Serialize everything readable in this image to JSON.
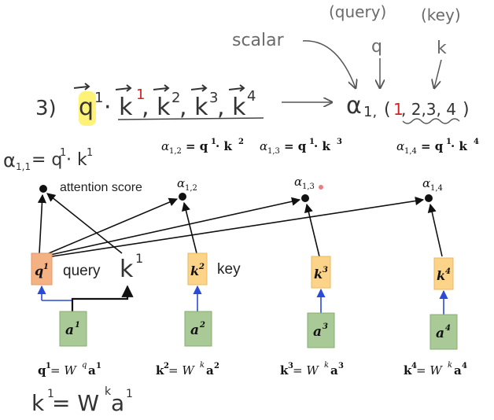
{
  "top": {
    "query_word": "(query)",
    "key_word": "(key)",
    "q_letter": "q",
    "k_letter": "k",
    "scalar_label": "scalar",
    "step_number": "3)",
    "dot_expr_q": "q",
    "dot_expr_q_sup": "1",
    "dot_expr_rest": "· k",
    "dot_expr_k1_sup": "1",
    "dot_expr_k2": ", k",
    "dot_expr_k2_sup": "2",
    "dot_expr_k3": ", k",
    "dot_expr_k3_sup": "3",
    "dot_expr_k4": ", k",
    "dot_expr_k4_sup": "4",
    "alpha_result": "α",
    "alpha_result_sub_1": "1,",
    "alpha_result_sub_2": "1",
    "alpha_result_sub_3": ", 2,3, 4",
    "alpha_result_close": ")",
    "alpha_result_open": "("
  },
  "formulas": {
    "a12": "α",
    "a12_sub": "1,2",
    "a12_eq": "= q",
    "a12_q_sup": "1",
    "a12_dot": " · k",
    "a12_k_sup": "2",
    "a13": "α",
    "a13_sub": "1,3",
    "a13_eq": "= q",
    "a13_q_sup": "1",
    "a13_dot": " · k",
    "a13_k_sup": "3",
    "a14": "α",
    "a14_sub": "1,4",
    "a14_eq": "= q",
    "a14_q_sup": "1",
    "a14_dot": " · k",
    "a14_k_sup": "4"
  },
  "left_note": {
    "alpha": "α",
    "sub": "1,1",
    "eq": " = q",
    "q_sup": "1",
    "dot": "· k",
    "k_sup": "1"
  },
  "scores": {
    "attention_score_label": "attention score",
    "s12": "α",
    "s12_sub": "1,2",
    "s13": "α",
    "s13_sub": "1,3",
    "s14": "α",
    "s14_sub": "1,4"
  },
  "boxes": {
    "q1": "q",
    "q1_sup": "1",
    "query_label": "query",
    "k1_hand": "k",
    "k1_hand_sup": "1",
    "k2": "k",
    "k2_sup": "2",
    "key_label": "key",
    "k3": "k",
    "k3_sup": "3",
    "k4": "k",
    "k4_sup": "4",
    "a1": "a",
    "a1_sup": "1",
    "a2": "a",
    "a2_sup": "2",
    "a3": "a",
    "a3_sup": "3",
    "a4": "a",
    "a4_sup": "4"
  },
  "bottom": {
    "q1_eq": "q",
    "q1_eq_sup": "1",
    "q1_eq_rhs": " = W",
    "q1_eq_w_sup": "q",
    "q1_eq_a": "a",
    "q1_eq_a_sup": "1",
    "k2_eq": "k",
    "k2_eq_sup": "2",
    "k2_eq_rhs": " = W",
    "k2_eq_w_sup": "k",
    "k2_eq_a": "a",
    "k2_eq_a_sup": "2",
    "k3_eq": "k",
    "k3_eq_sup": "3",
    "k3_eq_rhs": " = W",
    "k3_eq_w_sup": "k",
    "k3_eq_a": "a",
    "k3_eq_a_sup": "3",
    "k4_eq": "k",
    "k4_eq_sup": "4",
    "k4_eq_rhs": " = W",
    "k4_eq_w_sup": "k",
    "k4_eq_a": "a",
    "k4_eq_a_sup": "4",
    "k1_hand_eq": "k",
    "k1_hand_eq_sup": "1",
    "k1_hand_eq_rhs": " = W",
    "k1_hand_eq_w_sup": "k",
    "k1_hand_eq_a": "a",
    "k1_hand_eq_a_sup": "1"
  },
  "colors": {
    "q_box": "#f4b183",
    "k_box": "#fbd48a",
    "a_box": "#a9c996",
    "blue_arrow": "#2a4bd7",
    "highlight": "#fff16a",
    "red_mark": "#d62020"
  }
}
